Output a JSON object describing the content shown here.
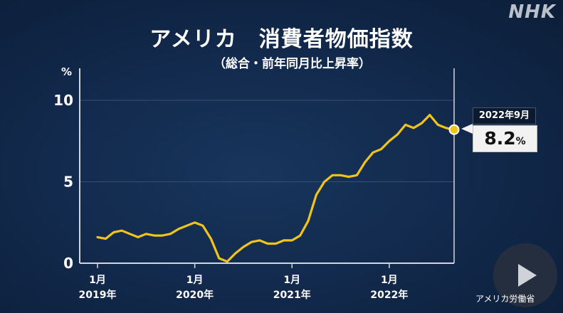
{
  "logo": "NHK",
  "title": "アメリカ　消費者物価指数",
  "subtitle": "（総合・前年同月比上昇率）",
  "source": "アメリカ労働省",
  "callout": {
    "date": "2022年9月",
    "value": "8.2",
    "unit": "%"
  },
  "colors": {
    "line": "#f0c419",
    "background": "#11284a",
    "grid": "#3a4f6d",
    "axis": "#d0d6de"
  },
  "icons": {
    "play": "play-icon"
  },
  "chart_data": {
    "type": "line",
    "title": "アメリカ　消費者物価指数",
    "subtitle": "（総合・前年同月比上昇率）",
    "ylabel": "%",
    "ylim": [
      0,
      11
    ],
    "yticks": [
      0,
      5,
      10
    ],
    "grid": true,
    "x_tick_labels": [
      {
        "month": "1月",
        "year": "2019年"
      },
      {
        "month": "1月",
        "year": "2020年"
      },
      {
        "month": "1月",
        "year": "2021年"
      },
      {
        "month": "1月",
        "year": "2022年"
      }
    ],
    "x": [
      "2019-01",
      "2019-02",
      "2019-03",
      "2019-04",
      "2019-05",
      "2019-06",
      "2019-07",
      "2019-08",
      "2019-09",
      "2019-10",
      "2019-11",
      "2019-12",
      "2020-01",
      "2020-02",
      "2020-03",
      "2020-04",
      "2020-05",
      "2020-06",
      "2020-07",
      "2020-08",
      "2020-09",
      "2020-10",
      "2020-11",
      "2020-12",
      "2021-01",
      "2021-02",
      "2021-03",
      "2021-04",
      "2021-05",
      "2021-06",
      "2021-07",
      "2021-08",
      "2021-09",
      "2021-10",
      "2021-11",
      "2021-12",
      "2022-01",
      "2022-02",
      "2022-03",
      "2022-04",
      "2022-05",
      "2022-06",
      "2022-07",
      "2022-08",
      "2022-09"
    ],
    "series": [
      {
        "values": [
          1.6,
          1.5,
          1.9,
          2.0,
          1.8,
          1.6,
          1.8,
          1.7,
          1.7,
          1.8,
          2.1,
          2.3,
          2.5,
          2.3,
          1.5,
          0.3,
          0.1,
          0.6,
          1.0,
          1.3,
          1.4,
          1.2,
          1.2,
          1.4,
          1.4,
          1.7,
          2.6,
          4.2,
          5.0,
          5.4,
          5.4,
          5.3,
          5.4,
          6.2,
          6.8,
          7.0,
          7.5,
          7.9,
          8.5,
          8.3,
          8.6,
          9.1,
          8.5,
          8.3,
          8.2
        ]
      }
    ],
    "highlight": {
      "x": "2022-09",
      "y": 8.2
    }
  }
}
